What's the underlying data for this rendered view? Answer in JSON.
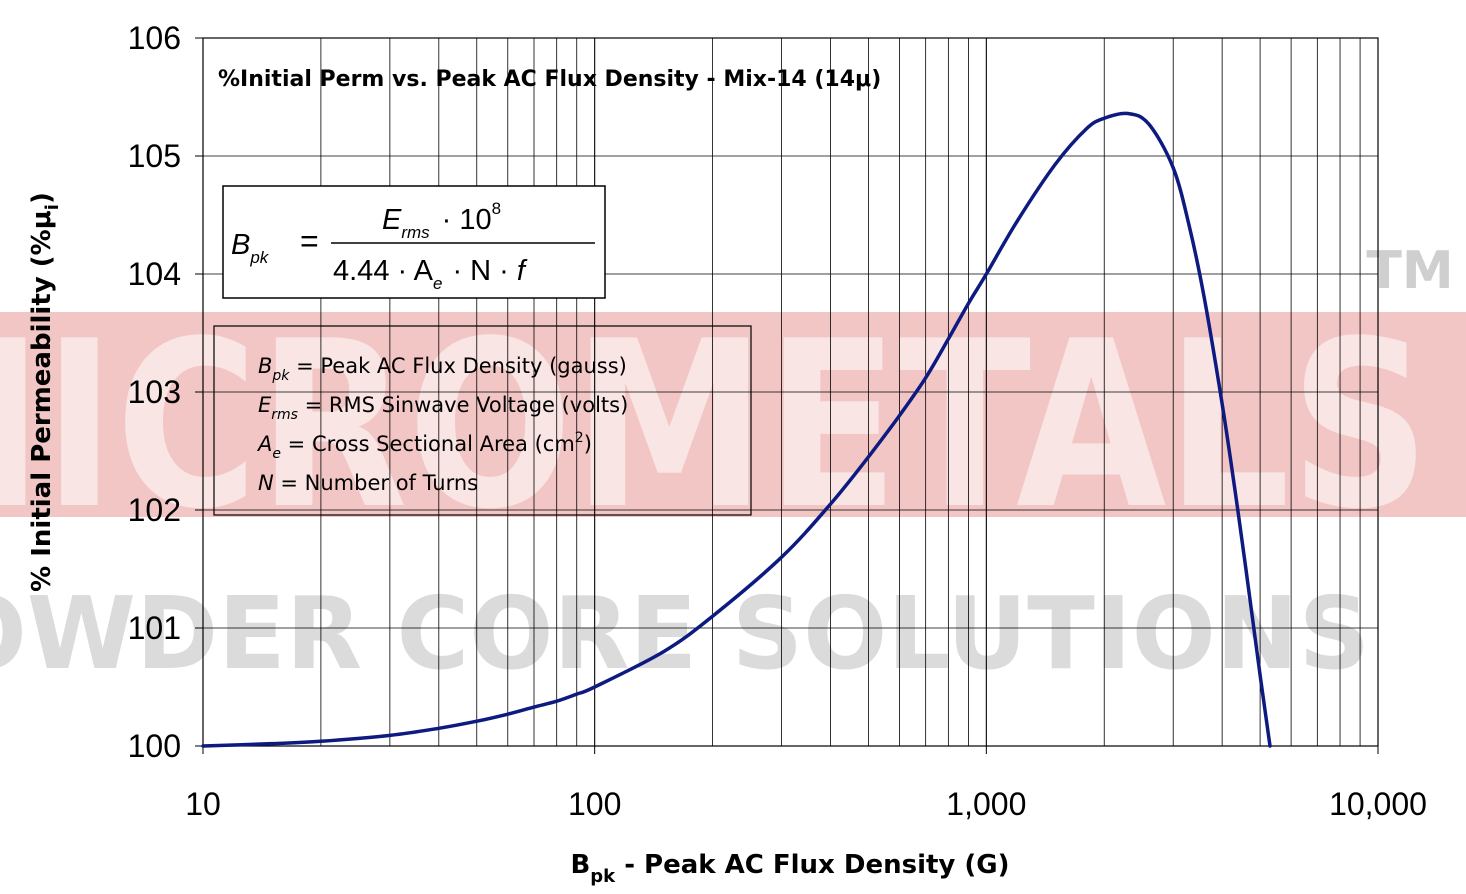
{
  "watermark": {
    "brand": "MICROMETALS",
    "tagline": "POWDER CORE SOLUTIONS",
    "trademark": "TM",
    "red": "#e05050",
    "gray": "#9a9a9a"
  },
  "equation": {
    "lhs": "B",
    "lhs_sub": "pk",
    "equals": "=",
    "num_main": "E",
    "num_sub": "rms",
    "num_rest": "· 10",
    "num_sup": "8",
    "den_a": "4.44 · A",
    "den_sub": "e",
    "den_b": "· N · ",
    "den_f": "f"
  },
  "legend": [
    {
      "sym": "B",
      "sub": "pk",
      "text": " = Peak AC Flux Density (gauss)"
    },
    {
      "sym": "E",
      "sub": "rms",
      "text": " = RMS Sinwave Voltage (volts)"
    },
    {
      "sym": "A",
      "sub": "e",
      "text": " = Cross Sectional Area (cm",
      "sup": "2",
      "tail": ")"
    },
    {
      "sym": "N",
      "sub": "",
      "text": " = Number of Turns"
    }
  ],
  "chart_data": {
    "type": "line",
    "title": "%Initial Perm vs. Peak AC Flux Density - Mix-14  (14μ)",
    "xlabel": {
      "main": "B",
      "sub": "pk",
      "rest": " - Peak AC Flux Density (G)"
    },
    "ylabel": {
      "main": "% Initial Permeability (%μ",
      "sub": "i",
      "rest": ")"
    },
    "x_scale": "log",
    "xlim": [
      10,
      10000
    ],
    "ylim": [
      100,
      106
    ],
    "x_ticks": [
      10,
      100,
      1000,
      10000
    ],
    "x_tick_labels": [
      "10",
      "100",
      "1,000",
      "10,000"
    ],
    "y_ticks": [
      100,
      101,
      102,
      103,
      104,
      105,
      106
    ],
    "y_tick_labels": [
      "100",
      "101",
      "102",
      "103",
      "104",
      "105",
      "106"
    ],
    "grid": true,
    "line_color": "#0d1a80",
    "series": [
      {
        "x": [
          10,
          15,
          20,
          30,
          40,
          50,
          60,
          70,
          80,
          90,
          100,
          150,
          200,
          300,
          400,
          500,
          600,
          700,
          800,
          900,
          1000,
          1200,
          1500,
          1800,
          2000,
          2300,
          2600,
          3000,
          3300,
          3600,
          4000,
          4300,
          4600,
          5000,
          5300
        ],
        "y": [
          100.0,
          100.02,
          100.04,
          100.09,
          100.15,
          100.21,
          100.27,
          100.33,
          100.38,
          100.44,
          100.5,
          100.8,
          101.1,
          101.6,
          102.05,
          102.45,
          102.8,
          103.12,
          103.45,
          103.75,
          104.0,
          104.45,
          104.93,
          105.23,
          105.32,
          105.36,
          105.27,
          104.9,
          104.4,
          103.8,
          102.9,
          102.2,
          101.5,
          100.6,
          100.0
        ]
      }
    ]
  }
}
